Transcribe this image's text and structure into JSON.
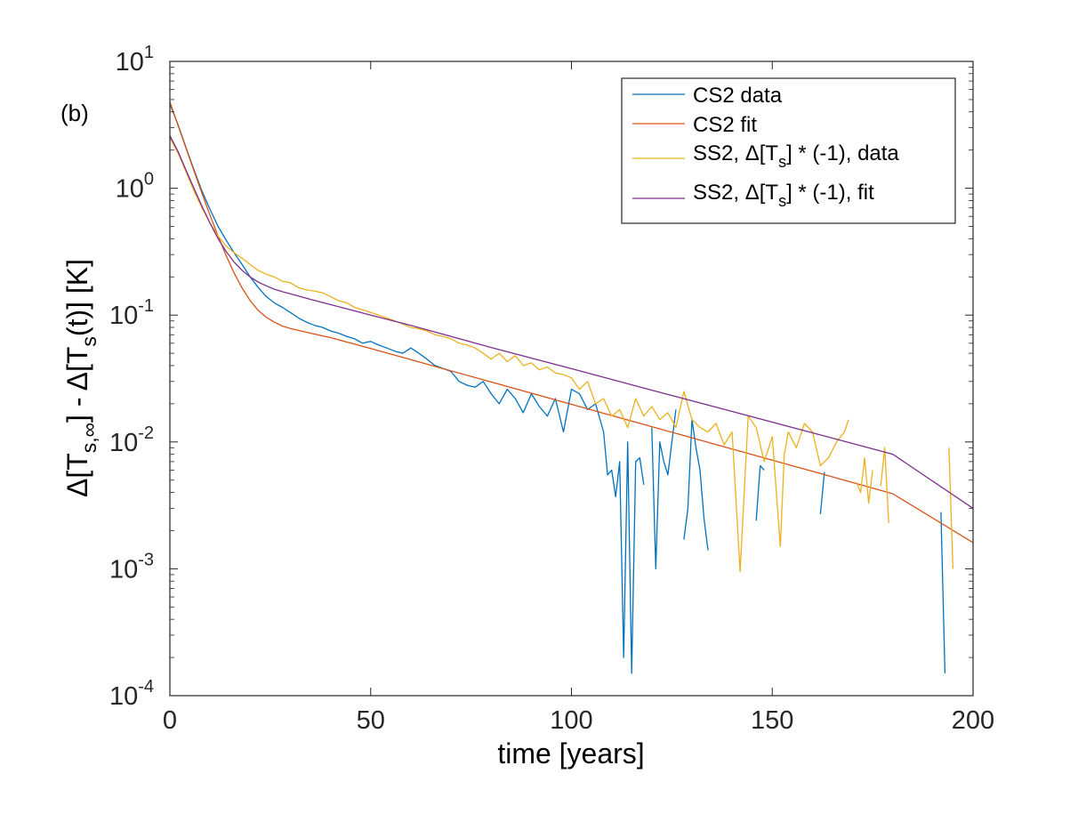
{
  "chart_data": {
    "type": "line",
    "panel_label": "(b)",
    "xlabel": "time [years]",
    "ylabel": {
      "part1": "Δ[T",
      "sub1": "s,∞",
      "part2": "] - Δ[T",
      "sub2": "s",
      "part3": "(t)] [K]"
    },
    "xlim": [
      0,
      200
    ],
    "ylim": [
      0.0001,
      10
    ],
    "yscale": "log",
    "x_ticks": [
      0,
      50,
      100,
      150,
      200
    ],
    "x_tick_labels": [
      "0",
      "50",
      "100",
      "150",
      "200"
    ],
    "y_ticks": [
      0.0001,
      0.001,
      0.01,
      0.1,
      1,
      10
    ],
    "y_tick_labels": [
      {
        "base": "10",
        "exp": "-4"
      },
      {
        "base": "10",
        "exp": "-3"
      },
      {
        "base": "10",
        "exp": "-2"
      },
      {
        "base": "10",
        "exp": "-1"
      },
      {
        "base": "10",
        "exp": "0"
      },
      {
        "base": "10",
        "exp": "1"
      }
    ],
    "legend_position": "top-right",
    "series": [
      {
        "name": "CS2 data",
        "legend": {
          "text": "CS2 data"
        },
        "color": "#0072BD",
        "x": [
          0,
          2,
          4,
          6,
          8,
          10,
          12,
          14,
          16,
          18,
          20,
          22,
          24,
          26,
          28,
          30,
          32,
          34,
          36,
          38,
          40,
          42,
          44,
          46,
          48,
          50,
          52,
          54,
          56,
          58,
          60,
          62,
          64,
          66,
          68,
          70,
          72,
          74,
          76,
          78,
          80,
          82,
          84,
          86,
          88,
          90,
          92,
          94,
          96,
          98,
          100,
          102,
          104,
          106,
          108,
          109,
          110,
          111,
          112,
          113,
          114,
          115,
          116,
          117,
          118,
          null,
          120,
          121,
          122,
          123,
          124,
          125,
          126,
          null,
          128,
          129,
          130,
          131,
          132,
          133,
          134,
          null,
          146,
          147,
          148,
          null,
          162,
          163,
          null,
          192,
          193
        ],
        "y": [
          4.6,
          3.2,
          2.1,
          1.4,
          0.95,
          0.68,
          0.5,
          0.39,
          0.31,
          0.25,
          0.2,
          0.165,
          0.14,
          0.125,
          0.115,
          0.105,
          0.095,
          0.088,
          0.083,
          0.08,
          0.075,
          0.072,
          0.068,
          0.065,
          0.06,
          0.062,
          0.058,
          0.055,
          0.052,
          0.05,
          0.055,
          0.05,
          0.045,
          0.04,
          0.038,
          0.036,
          0.03,
          0.028,
          0.027,
          0.03,
          0.024,
          0.02,
          0.026,
          0.022,
          0.017,
          0.024,
          0.019,
          0.016,
          0.022,
          0.012,
          0.026,
          0.024,
          0.018,
          0.02,
          0.012,
          0.0055,
          0.006,
          0.0037,
          0.007,
          0.0002,
          0.01,
          0.00015,
          0.007,
          0.0075,
          0.0046,
          null,
          0.013,
          0.001,
          0.01,
          0.007,
          0.0055,
          0.01,
          0.018,
          null,
          0.0017,
          0.003,
          0.015,
          0.009,
          0.006,
          0.0025,
          0.0014,
          null,
          0.0024,
          0.0065,
          0.006,
          null,
          0.0027,
          0.0058,
          null,
          0.0028,
          0.00015
        ]
      },
      {
        "name": "CS2 fit",
        "legend": {
          "text": "CS2 fit"
        },
        "color": "#D95319",
        "x": [
          0,
          2,
          4,
          6,
          8,
          10,
          12,
          14,
          16,
          18,
          20,
          22,
          24,
          26,
          28,
          30,
          35,
          40,
          50,
          60,
          80,
          100,
          120,
          140,
          160,
          180,
          200
        ],
        "y": [
          4.8,
          3.15,
          2.07,
          1.37,
          0.91,
          0.61,
          0.42,
          0.295,
          0.215,
          0.163,
          0.13,
          0.109,
          0.096,
          0.088,
          0.082,
          0.0785,
          0.072,
          0.0665,
          0.0545,
          0.0445,
          0.0297,
          0.0198,
          0.0132,
          0.0088,
          0.00587,
          0.00391,
          0.00161
        ]
      },
      {
        "name": "SS2, Δ[Ts] * (-1), data",
        "legend": {
          "pre": "SS2, Δ[T",
          "sub": "s",
          "post": "] * (-1), data"
        },
        "color": "#EDB120",
        "x": [
          0,
          2,
          4,
          6,
          8,
          10,
          12,
          14,
          16,
          18,
          20,
          22,
          24,
          26,
          28,
          30,
          32,
          34,
          36,
          38,
          40,
          42,
          44,
          46,
          48,
          50,
          52,
          54,
          56,
          58,
          60,
          62,
          64,
          66,
          68,
          70,
          72,
          74,
          76,
          78,
          80,
          82,
          84,
          86,
          88,
          90,
          92,
          94,
          96,
          98,
          100,
          102,
          104,
          106,
          108,
          110,
          112,
          114,
          116,
          118,
          120,
          122,
          124,
          126,
          128,
          130,
          132,
          134,
          136,
          138,
          140,
          142,
          144,
          146,
          148,
          150,
          152,
          153,
          154,
          156,
          158,
          160,
          162,
          164,
          166,
          168,
          169,
          null,
          171,
          172,
          173,
          174,
          175,
          null,
          177,
          178,
          179,
          null,
          194,
          195
        ],
        "y": [
          2.5,
          1.9,
          1.35,
          0.95,
          0.7,
          0.53,
          0.42,
          0.35,
          0.31,
          0.28,
          0.25,
          0.225,
          0.21,
          0.2,
          0.185,
          0.18,
          0.165,
          0.158,
          0.155,
          0.15,
          0.14,
          0.13,
          0.125,
          0.115,
          0.11,
          0.105,
          0.1,
          0.095,
          0.09,
          0.085,
          0.08,
          0.078,
          0.075,
          0.07,
          0.068,
          0.065,
          0.06,
          0.058,
          0.055,
          0.05,
          0.045,
          0.05,
          0.043,
          0.048,
          0.04,
          0.042,
          0.037,
          0.039,
          0.035,
          0.034,
          0.032,
          0.026,
          0.03,
          0.02,
          0.022,
          0.016,
          0.018,
          0.013,
          0.022,
          0.016,
          0.019,
          0.015,
          0.017,
          0.013,
          0.025,
          0.015,
          0.013,
          0.012,
          0.014,
          0.0095,
          0.012,
          0.00095,
          0.016,
          0.013,
          0.007,
          0.011,
          0.0015,
          0.008,
          0.012,
          0.009,
          0.014,
          0.012,
          0.0065,
          0.0075,
          0.01,
          0.012,
          0.015,
          null,
          0.0048,
          0.004,
          0.0075,
          0.0033,
          0.006,
          null,
          0.0045,
          0.009,
          0.0023,
          null,
          0.009,
          0.001
        ]
      },
      {
        "name": "SS2, Δ[Ts] * (-1), fit",
        "legend": {
          "pre": "SS2, Δ[T",
          "sub": "s",
          "post": "] * (-1), fit"
        },
        "color": "#7E2F8E",
        "x": [
          0,
          2,
          4,
          6,
          8,
          10,
          12,
          14,
          16,
          18,
          20,
          22,
          24,
          26,
          28,
          30,
          35,
          40,
          50,
          60,
          80,
          100,
          120,
          140,
          160,
          180,
          200
        ],
        "y": [
          2.6,
          1.96,
          1.39,
          1.0,
          0.72,
          0.53,
          0.4,
          0.318,
          0.262,
          0.225,
          0.2,
          0.182,
          0.17,
          0.16,
          0.153,
          0.147,
          0.133,
          0.121,
          0.1,
          0.083,
          0.0556,
          0.0378,
          0.0256,
          0.0174,
          0.0118,
          0.008,
          0.003
        ]
      }
    ]
  }
}
